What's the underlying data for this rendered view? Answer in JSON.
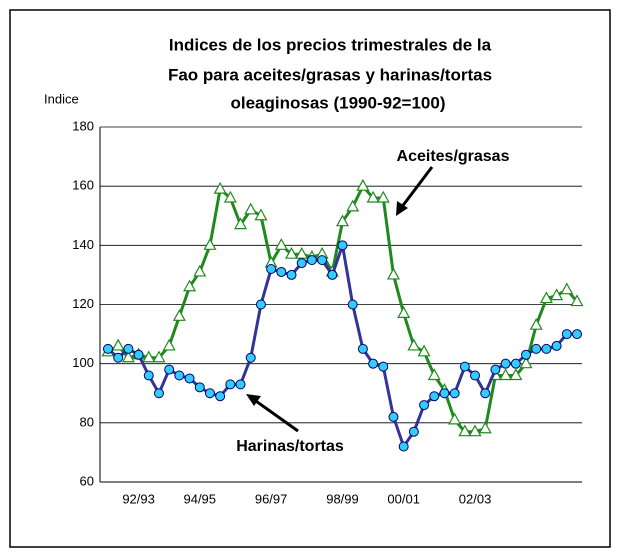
{
  "chart_data": {
    "type": "line",
    "title": [
      "Indices de los precios trimestrales de la",
      "Fao para aceites/grasas y harinas/tortas",
      "oleaginosas (1990-92=100)"
    ],
    "y_label": "Indice",
    "categories": [
      null,
      null,
      null,
      "92/93",
      null,
      null,
      null,
      null,
      null,
      "94/95",
      null,
      null,
      null,
      null,
      null,
      null,
      "96/97",
      null,
      null,
      null,
      null,
      null,
      null,
      "98/99",
      null,
      null,
      null,
      null,
      null,
      "00/01",
      null,
      null,
      null,
      null,
      null,
      null,
      "02/03",
      null,
      null,
      null,
      null,
      null,
      null,
      null,
      null,
      null,
      null
    ],
    "series": [
      {
        "name": "Aceites/grasas",
        "color": "#1e8a1e",
        "marker": "triangle",
        "values": [
          104,
          106,
          102,
          103,
          102,
          102,
          106,
          116,
          126,
          131,
          140,
          159,
          156,
          147,
          152,
          150,
          134,
          140,
          137,
          137,
          136,
          137,
          131,
          148,
          153,
          160,
          156,
          156,
          130,
          117,
          106,
          104,
          96,
          91,
          81,
          77,
          77,
          78,
          96,
          96,
          96,
          100,
          113,
          122,
          123,
          125,
          121
        ]
      },
      {
        "name": "Harinas/tortas",
        "color": "#333399",
        "marker": "circle",
        "values": [
          105,
          102,
          105,
          103,
          96,
          90,
          98,
          96,
          95,
          92,
          90,
          89,
          93,
          93,
          102,
          120,
          132,
          131,
          130,
          134,
          135,
          135,
          130,
          140,
          120,
          105,
          100,
          99,
          82,
          72,
          77,
          86,
          89,
          90,
          90,
          99,
          96,
          90,
          98,
          100,
          100,
          103,
          105,
          105,
          106,
          110,
          110
        ]
      }
    ],
    "annotations": [
      "Aceites/grasas",
      "Harinas/tortas"
    ],
    "ylim": [
      60,
      180
    ],
    "yticks": [
      60,
      80,
      100,
      120,
      140,
      160,
      180
    ],
    "grid": true
  }
}
